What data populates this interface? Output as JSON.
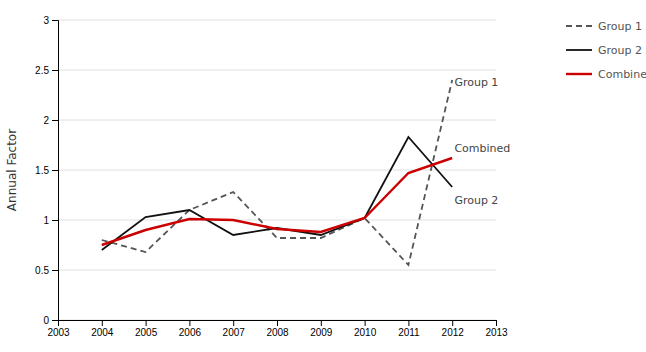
{
  "chart_data": {
    "type": "line",
    "ylabel": "Annual Factor",
    "x": [
      2004,
      2005,
      2006,
      2007,
      2008,
      2009,
      2010,
      2011,
      2012
    ],
    "series": [
      {
        "name": "Group 1",
        "color": "#555555",
        "line_style": "dashed",
        "values": [
          0.8,
          0.68,
          1.1,
          1.28,
          0.82,
          0.82,
          1.02,
          0.55,
          2.4
        ]
      },
      {
        "name": "Group 2",
        "color": "#111111",
        "line_style": "solid",
        "values": [
          0.7,
          1.03,
          1.1,
          0.85,
          0.92,
          0.85,
          1.02,
          1.83,
          1.33
        ]
      },
      {
        "name": "Combined",
        "color": "#cc0000",
        "line_style": "solid",
        "values": [
          0.75,
          0.9,
          1.01,
          1.0,
          0.91,
          0.88,
          1.02,
          1.47,
          1.62
        ]
      }
    ],
    "xlim": [
      2003,
      2013
    ],
    "ylim": [
      0,
      3
    ],
    "xticks": [
      2003,
      2004,
      2005,
      2006,
      2007,
      2008,
      2009,
      2010,
      2011,
      2012,
      2013
    ],
    "yticks": [
      0,
      0.5,
      1,
      1.5,
      2,
      2.5,
      3
    ],
    "grid": "y",
    "legend": "right",
    "annotations": [
      {
        "text": "Group 1",
        "x": 2012.05,
        "y": 2.38
      },
      {
        "text": "Combined",
        "x": 2012.05,
        "y": 1.72
      },
      {
        "text": "Group 2",
        "x": 2012.05,
        "y": 1.2
      }
    ]
  }
}
